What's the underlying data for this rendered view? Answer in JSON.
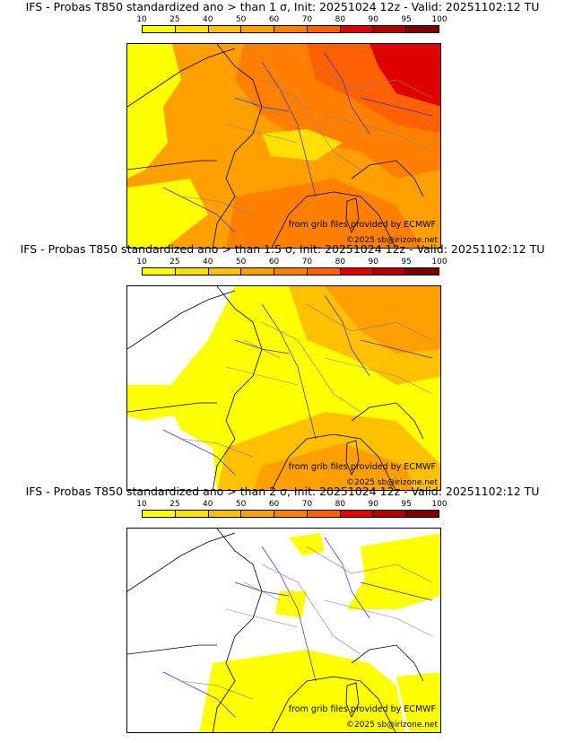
{
  "legend": {
    "labels": [
      "10",
      "25",
      "40",
      "50",
      "60",
      "70",
      "80",
      "90",
      "95",
      "100"
    ],
    "colors": [
      "#ffff00",
      "#ffe000",
      "#ffc000",
      "#ffa000",
      "#ff8000",
      "#ff6000",
      "#e00000",
      "#b00000",
      "#800000"
    ]
  },
  "colors": {
    "ocean": "#ffffff",
    "coast": "#000000",
    "borders": "#808080",
    "rivers": "#3030d0"
  },
  "panels": [
    {
      "title": "IFS - Probas T850  standardized ano > than 1 σ, Init: 20251024 12z - Valid: 20251102:12 TU",
      "source_credit": "from grib files provided by ECMWF",
      "copyright": "©2025 sb@irizone.net",
      "coverage": "high"
    },
    {
      "title": "IFS - Probas T850  standardized ano > than 1.5 σ, Init: 20251024 12z - Valid: 20251102:12 TU",
      "source_credit": "from grib files provided by ECMWF",
      "copyright": "©2025 sb@irizone.net",
      "coverage": "medium"
    },
    {
      "title": "IFS - Probas T850  standardized ano > than 2 σ, Init: 20251024 12z - Valid: 20251102:12 TU",
      "source_credit": "from grib files provided by ECMWF",
      "copyright": "©2025 sb@irizone.net",
      "coverage": "low"
    }
  ]
}
